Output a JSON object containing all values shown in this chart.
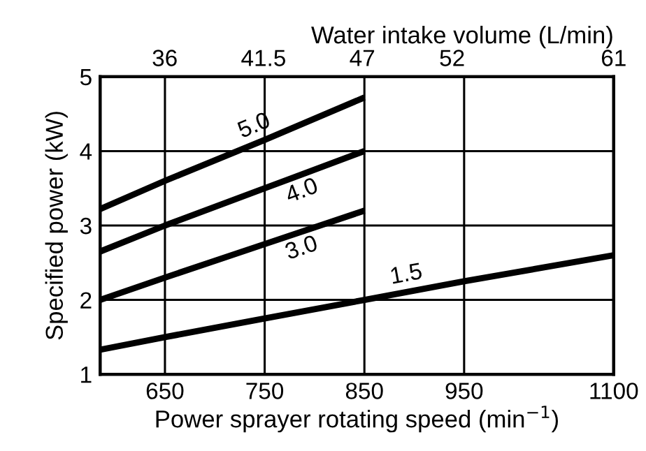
{
  "chart_data": {
    "type": "line",
    "xlabel": "Power sprayer rotating speed (min$^{−1}$)",
    "ylabel": "Specified power (kW)",
    "x2label": "Water intake volume (L/min)",
    "xlim": [
      585,
      1100
    ],
    "xticks": [
      650,
      750,
      850,
      950,
      1100
    ],
    "ylim": [
      1,
      5
    ],
    "yticks": [
      1,
      2,
      3,
      4,
      5
    ],
    "x2lim": [
      32.4,
      61
    ],
    "x2ticks": [
      36,
      41.5,
      47,
      52,
      61
    ],
    "grid": true,
    "line_style": "solid",
    "marker": "none",
    "legend": false,
    "series": [
      {
        "name": "5.0",
        "color": "#000000",
        "x": [
          585,
          650,
          750,
          850
        ],
        "values": [
          3.22,
          3.6,
          4.15,
          4.72
        ]
      },
      {
        "name": "4.0",
        "color": "#000000",
        "x": [
          585,
          650,
          750,
          850
        ],
        "values": [
          2.65,
          3.0,
          3.5,
          4.0
        ]
      },
      {
        "name": "3.0",
        "color": "#000000",
        "x": [
          585,
          650,
          750,
          850
        ],
        "values": [
          2.0,
          2.3,
          2.75,
          3.2
        ]
      },
      {
        "name": "1.5",
        "color": "#000000",
        "x": [
          585,
          650,
          750,
          850,
          950,
          1100
        ],
        "values": [
          1.33,
          1.5,
          1.75,
          2.0,
          2.25,
          2.6
        ]
      }
    ]
  }
}
